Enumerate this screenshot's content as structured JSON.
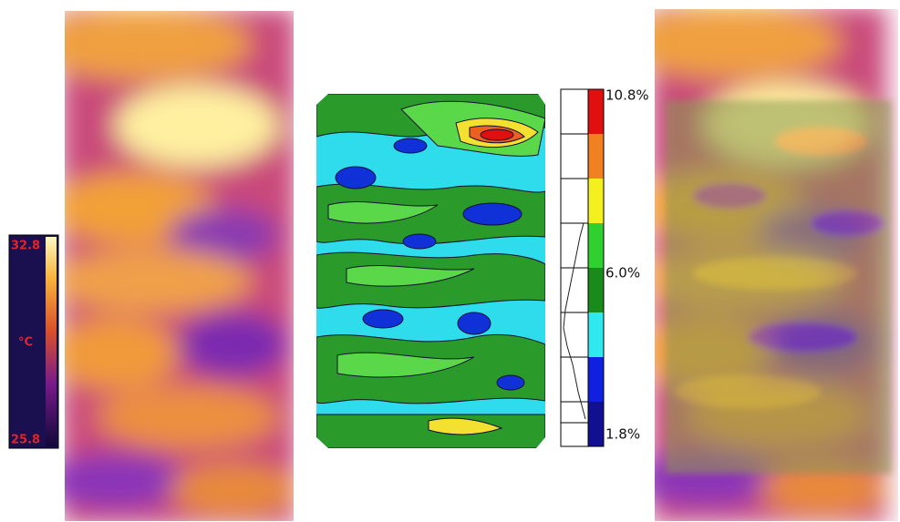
{
  "thermal_colorbar": {
    "max": "32.8",
    "unit": "°C",
    "min": "25.8"
  },
  "contour_colorbar": {
    "labels": [
      "10.8%",
      "6.0%",
      "1.8%"
    ]
  }
}
